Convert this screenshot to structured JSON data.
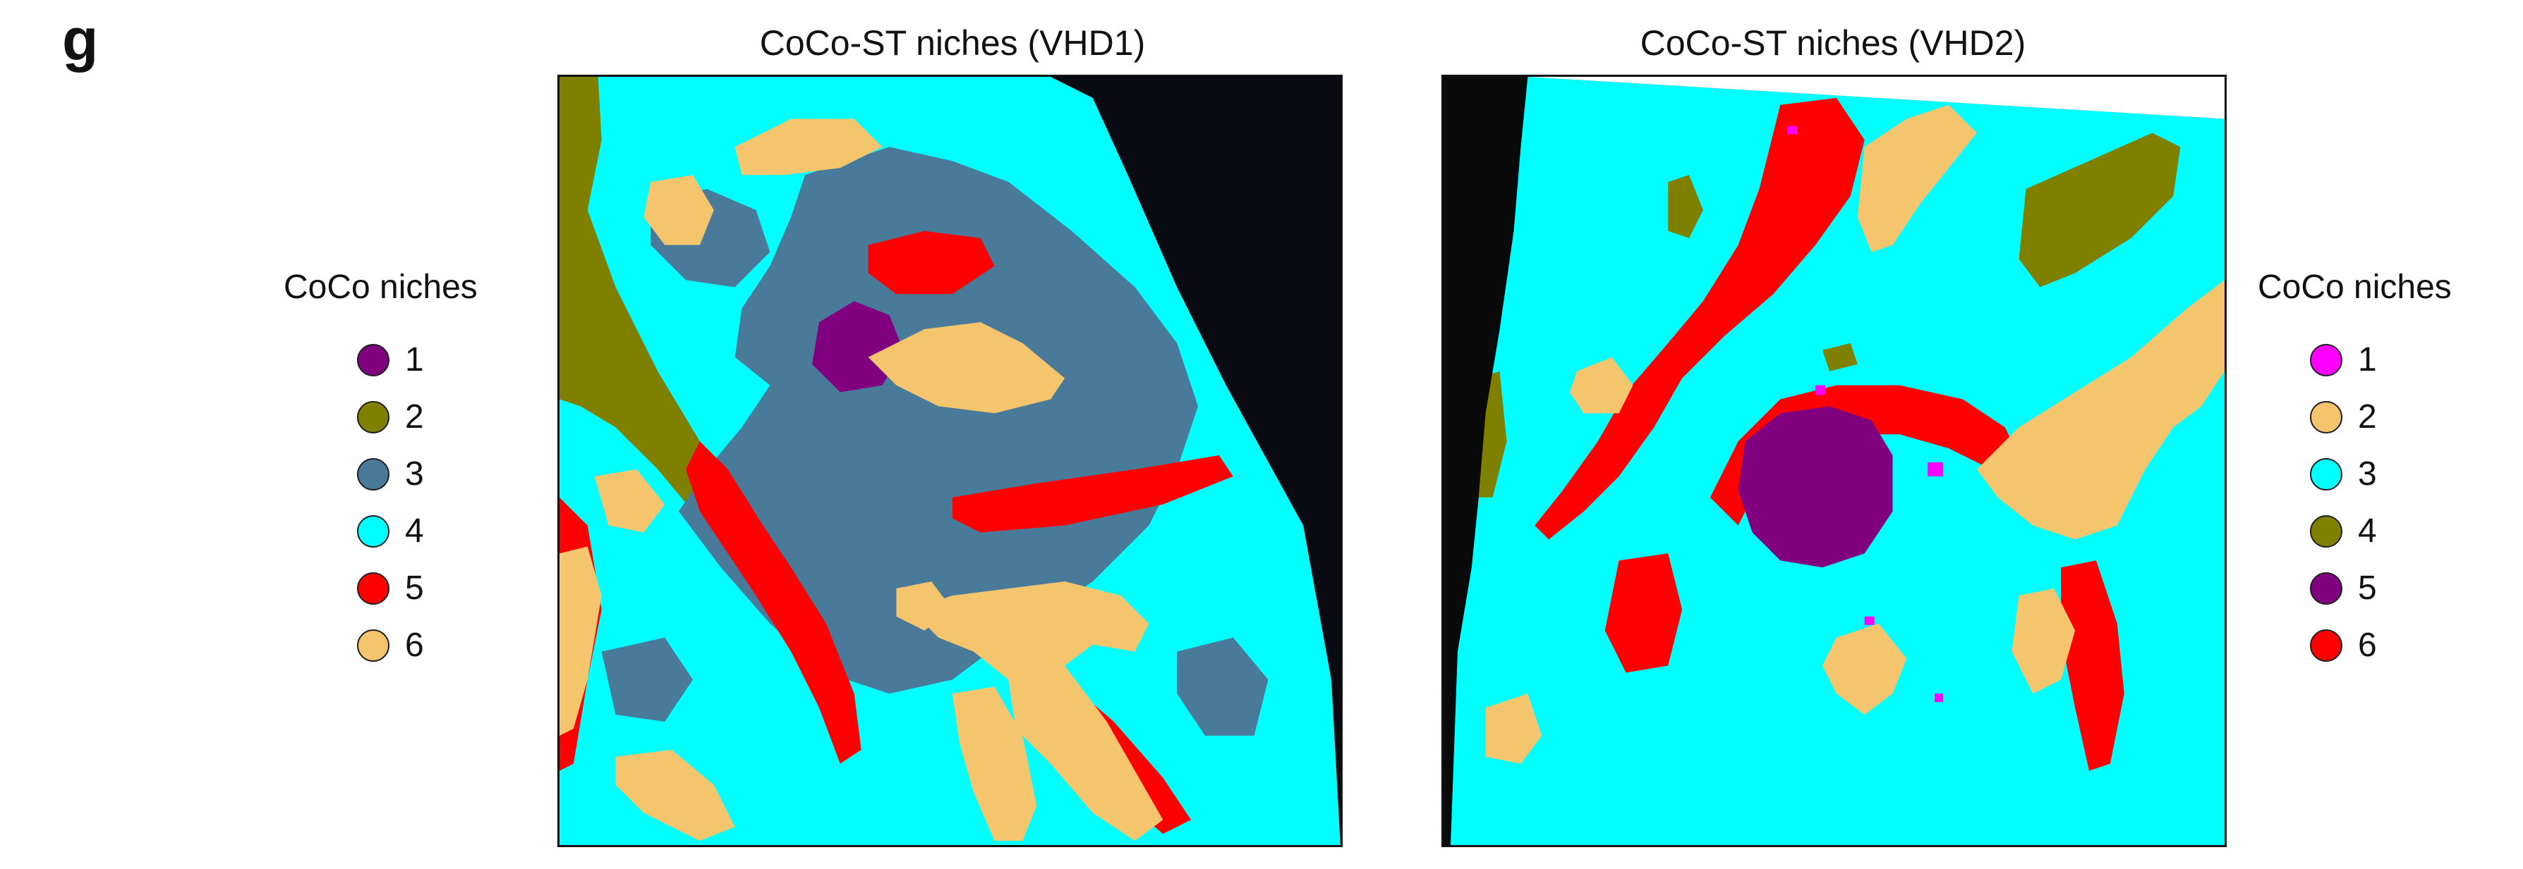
{
  "panel_letter": "g",
  "maps": [
    {
      "title": "CoCo-ST niches (VHD1)",
      "legend_title": "CoCo niches",
      "niches": [
        {
          "label": "1",
          "color": "#800080"
        },
        {
          "label": "2",
          "color": "#808000"
        },
        {
          "label": "3",
          "color": "#4a7a9a"
        },
        {
          "label": "4",
          "color": "#00ffff"
        },
        {
          "label": "5",
          "color": "#ff0000"
        },
        {
          "label": "6",
          "color": "#f5c56e"
        }
      ]
    },
    {
      "title": "CoCo-ST niches (VHD2)",
      "legend_title": "CoCo niches",
      "niches": [
        {
          "label": "1",
          "color": "#ff00ff"
        },
        {
          "label": "2",
          "color": "#f5c56e"
        },
        {
          "label": "3",
          "color": "#00ffff"
        },
        {
          "label": "4",
          "color": "#808000"
        },
        {
          "label": "5",
          "color": "#800080"
        },
        {
          "label": "6",
          "color": "#ff0000"
        }
      ]
    }
  ]
}
